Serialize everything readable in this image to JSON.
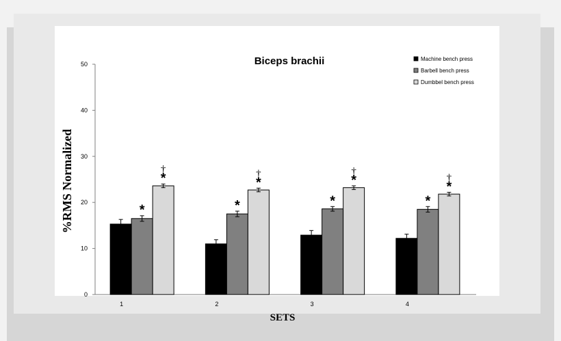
{
  "chart_data": {
    "type": "bar",
    "title": "Biceps brachii",
    "xlabel": "SETS",
    "ylabel": "%RMS Normalized",
    "ylim": [
      0,
      50
    ],
    "yticks": [
      "0",
      "10",
      "20",
      "30",
      "40",
      "50"
    ],
    "categories": [
      "1",
      "2",
      "3",
      "4"
    ],
    "series": [
      {
        "name": "Machine bench press",
        "values": [
          15.3,
          11.0,
          12.9,
          12.2
        ],
        "errors": [
          1.0,
          0.9,
          1.0,
          0.9
        ],
        "color": "#000000",
        "marks": [
          "",
          "",
          "",
          ""
        ]
      },
      {
        "name": "Barbell bench press",
        "values": [
          16.5,
          17.5,
          18.6,
          18.5
        ],
        "errors": [
          0.6,
          0.6,
          0.5,
          0.6
        ],
        "color": "#808080",
        "marks": [
          "*",
          "*",
          "*",
          "*"
        ]
      },
      {
        "name": "Dumbbel bench press",
        "values": [
          23.6,
          22.7,
          23.2,
          21.8
        ],
        "errors": [
          0.4,
          0.4,
          0.4,
          0.4
        ],
        "color": "#d9d9d9",
        "marks": [
          "*",
          "*",
          "*",
          "*"
        ],
        "marks2": [
          "†",
          "†",
          "†",
          "†"
        ]
      }
    ],
    "legend": "top-right",
    "grid": false
  }
}
